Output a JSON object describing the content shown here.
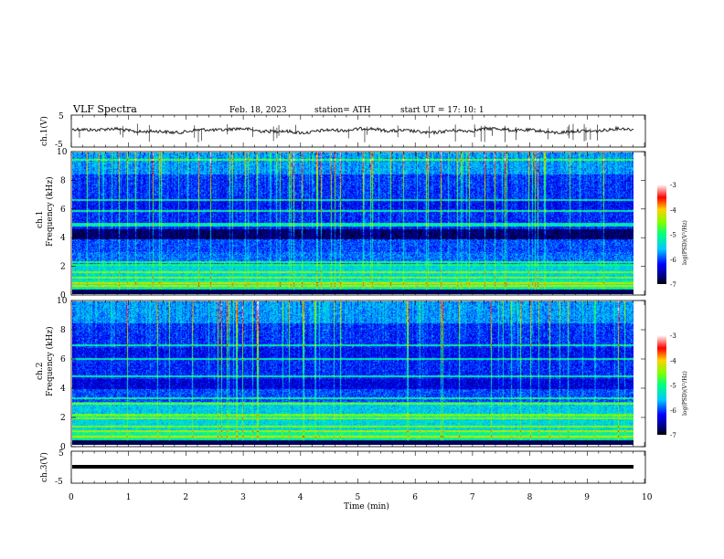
{
  "header": {
    "title": "VLF  Spectra",
    "date": "Feb. 18, 2023",
    "station": "station= ATH",
    "start": "start  UT  =    17: 10: 1"
  },
  "chart_data": [
    {
      "type": "line",
      "id": "ch1-waveform",
      "ylabel": "ch.1(V)",
      "ylim": [
        -5,
        5
      ],
      "yticks": [
        "5",
        "-5"
      ],
      "x_range_min": [
        0,
        9.8
      ],
      "baseline_v": 0,
      "color": "#222222"
    },
    {
      "type": "heatmap",
      "id": "ch1-spectrogram",
      "ylabel": "ch.1",
      "ylabel2": "Frequency  (kHz)",
      "ylim": [
        0,
        10
      ],
      "yticks": [
        "0",
        "2",
        "4",
        "6",
        "8",
        "10"
      ],
      "x_range_min": [
        0,
        9.8
      ],
      "colorbar": {
        "label": "log(PSD)(V²/Hz)",
        "ticks": [
          "-3",
          "-4",
          "-5",
          "-6",
          "-7"
        ],
        "range": [
          -7,
          -3
        ]
      }
    },
    {
      "type": "heatmap",
      "id": "ch2-spectrogram",
      "ylabel": "ch.2",
      "ylabel2": "Frequency  (kHz)",
      "ylim": [
        0,
        10
      ],
      "yticks": [
        "0",
        "2",
        "4",
        "6",
        "8",
        "10"
      ],
      "x_range_min": [
        0,
        9.8
      ],
      "colorbar": {
        "label": "log(PSD)(V²/Hz)",
        "ticks": [
          "-3",
          "-4",
          "-5",
          "-6",
          "-7"
        ],
        "range": [
          -7,
          -3
        ]
      }
    },
    {
      "type": "line",
      "id": "ch3-waveform",
      "ylabel": "ch.3(V)",
      "ylim": [
        -5,
        5
      ],
      "yticks": [
        "5",
        "0",
        "-5"
      ],
      "x_range_min": [
        0,
        9.8
      ],
      "baseline_v": -1.5,
      "color": "#000000"
    }
  ],
  "xaxis": {
    "label": "Time  (min)",
    "ticks": [
      "0",
      "1",
      "2",
      "3",
      "4",
      "5",
      "6",
      "7",
      "8",
      "9",
      "10"
    ],
    "xlim": [
      0,
      10
    ]
  }
}
